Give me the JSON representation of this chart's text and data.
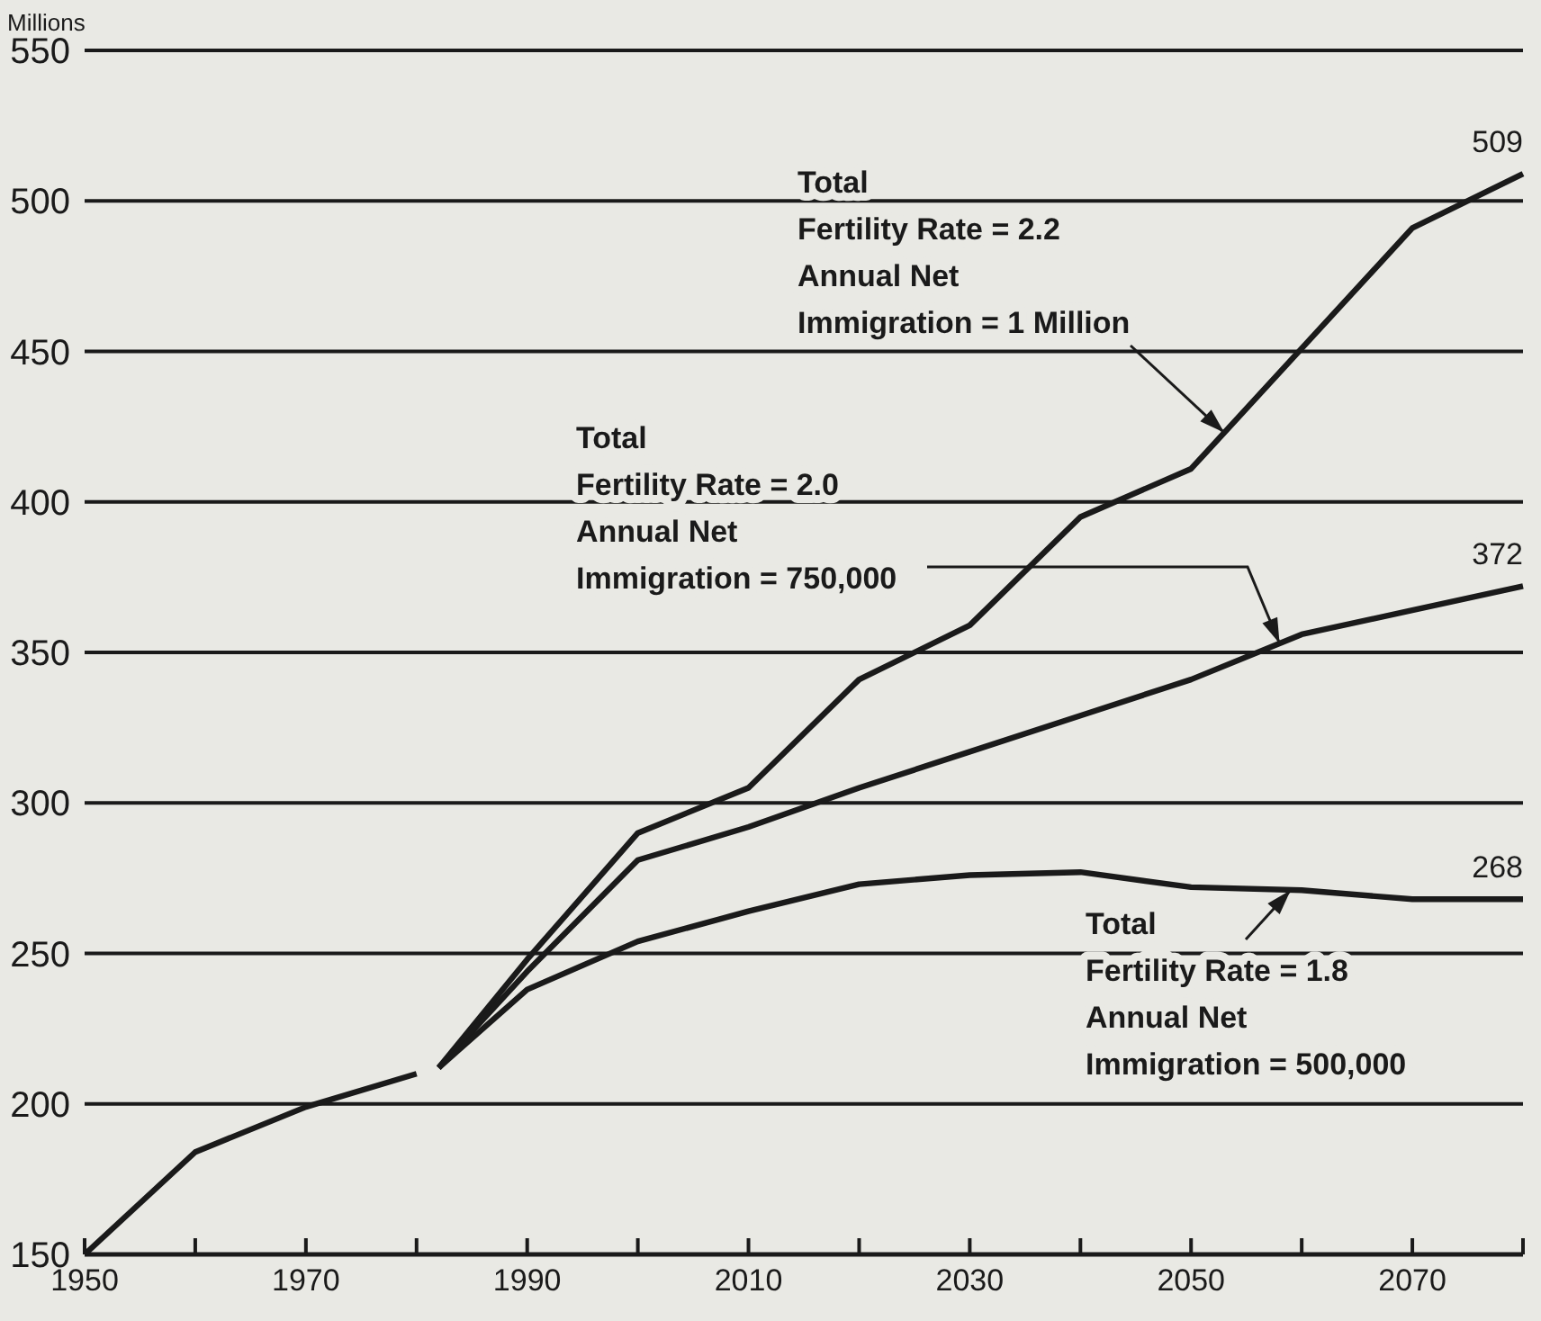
{
  "chart_data": {
    "type": "line",
    "ylabel": "Millions",
    "xlim": [
      1950,
      2080
    ],
    "ylim": [
      150,
      550
    ],
    "xticks": [
      1950,
      {
        "value": 1960,
        "label": null
      },
      1970,
      {
        "value": 1980,
        "label": null
      },
      1990,
      {
        "value": 2000,
        "label": null
      },
      2010,
      {
        "value": 2020,
        "label": null
      },
      2030,
      {
        "value": 2040,
        "label": null
      },
      2050,
      {
        "value": 2060,
        "label": null
      },
      2070,
      {
        "value": 2080,
        "label": null
      }
    ],
    "yticks": [
      150,
      200,
      250,
      300,
      350,
      400,
      450,
      500,
      550
    ],
    "grid": "y",
    "marker": "none",
    "line_style": "solid",
    "series": [
      {
        "color": "#1a1a1a",
        "x": [
          1950,
          1960,
          1970,
          1980
        ],
        "values": [
          150,
          184,
          199,
          210
        ]
      },
      {
        "color": "#1a1a1a",
        "x": [
          1982,
          1990,
          2000,
          2010,
          2020,
          2030,
          2040,
          2050,
          2060,
          2070,
          2080
        ],
        "values": [
          212,
          248,
          290,
          305,
          341,
          359,
          395,
          411,
          451,
          491,
          509
        ],
        "value_labels": [
          null,
          null,
          null,
          null,
          null,
          null,
          null,
          null,
          null,
          null,
          "509"
        ]
      },
      {
        "color": "#1a1a1a",
        "x": [
          1982,
          1990,
          2000,
          2010,
          2020,
          2030,
          2040,
          2050,
          2060,
          2070,
          2080
        ],
        "values": [
          212,
          244,
          281,
          292,
          305,
          317,
          329,
          341,
          356,
          364,
          372
        ],
        "value_labels": [
          null,
          null,
          null,
          null,
          null,
          null,
          null,
          null,
          null,
          null,
          "372"
        ]
      },
      {
        "color": "#1a1a1a",
        "x": [
          1982,
          1990,
          2000,
          2010,
          2020,
          2030,
          2040,
          2050,
          2060,
          2070,
          2080
        ],
        "values": [
          212,
          238,
          254,
          264,
          273,
          276,
          277,
          272,
          271,
          268,
          268
        ],
        "value_labels": [
          null,
          null,
          null,
          null,
          null,
          null,
          null,
          null,
          null,
          null,
          "268"
        ]
      }
    ],
    "annotations": [
      {
        "text": "Total\nFertility Rate = 2.2\nAnnual Net\nImmigration = 1 Million",
        "x": 2053,
        "y": 423
      },
      {
        "text": "Total\nFertility Rate = 2.0\nAnnual Net\nImmigration = 750,000",
        "x": 2058,
        "y": 353
      },
      {
        "text": "Total\nFertility Rate = 1.8\nAnnual Net\nImmigration = 500,000",
        "x": 2059,
        "y": 271
      }
    ]
  }
}
